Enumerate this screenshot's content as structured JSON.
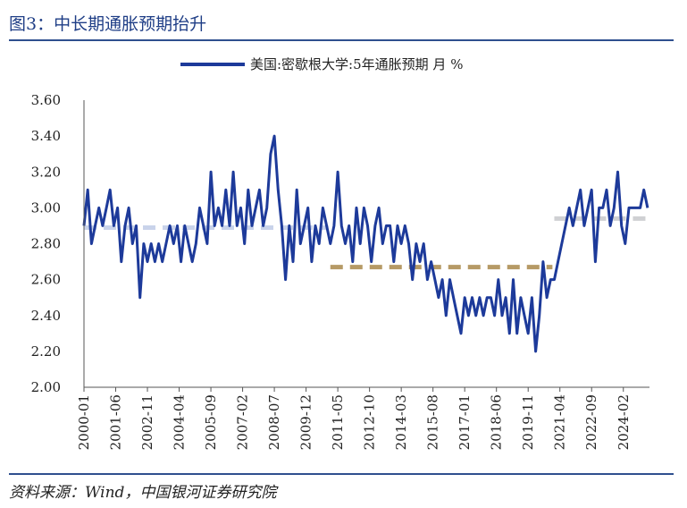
{
  "figure": {
    "title": "图3：中长期通胀预期抬升",
    "source": "资料来源：Wind，中国银河证券研究院"
  },
  "colors": {
    "series": "#1d3a9a",
    "mean1": "#c9d3ea",
    "mean2": "#b69a66",
    "mean3": "#cfd0d3",
    "axis": "#555555",
    "title": "#1f3e86"
  },
  "chart_data": {
    "type": "line",
    "legend": "美国:密歇根大学:5年通胀预期 月 %",
    "legend_position": "top-center",
    "grid": false,
    "ylim": [
      2.0,
      3.6
    ],
    "yticks": [
      "2.00",
      "2.20",
      "2.40",
      "2.60",
      "2.80",
      "3.00",
      "3.20",
      "3.40",
      "3.60"
    ],
    "xlim": [
      "2000-01",
      "2025-04"
    ],
    "xticks": [
      "2000-01",
      "2001-06",
      "2002-11",
      "2004-04",
      "2005-09",
      "2007-02",
      "2008-07",
      "2009-12",
      "2011-05",
      "2012-10",
      "2014-03",
      "2015-08",
      "2017-01",
      "2018-06",
      "2019-11",
      "2021-04",
      "2022-09",
      "2024-02"
    ],
    "series": [
      {
        "x": [
          "2000-01",
          "2000-03",
          "2000-05",
          "2000-07",
          "2000-09",
          "2000-11",
          "2001-01",
          "2001-03",
          "2001-05",
          "2001-07",
          "2001-09",
          "2001-11",
          "2002-01",
          "2002-03",
          "2002-05",
          "2002-07",
          "2002-09",
          "2002-11",
          "2003-01",
          "2003-03",
          "2003-05",
          "2003-07",
          "2003-09",
          "2003-11",
          "2004-01",
          "2004-03",
          "2004-05",
          "2004-07",
          "2004-09",
          "2004-11",
          "2005-01",
          "2005-03",
          "2005-05",
          "2005-07",
          "2005-09",
          "2005-11",
          "2006-01",
          "2006-03",
          "2006-05",
          "2006-07",
          "2006-09",
          "2006-11",
          "2007-01",
          "2007-03",
          "2007-05",
          "2007-07",
          "2007-09",
          "2007-11",
          "2008-01",
          "2008-03",
          "2008-05",
          "2008-07",
          "2008-09",
          "2008-11",
          "2009-01",
          "2009-03",
          "2009-05",
          "2009-07",
          "2009-09",
          "2009-11",
          "2010-01",
          "2010-03",
          "2010-05",
          "2010-07",
          "2010-09",
          "2010-11",
          "2011-01",
          "2011-03",
          "2011-05",
          "2011-07",
          "2011-09",
          "2011-11",
          "2012-01",
          "2012-03",
          "2012-05",
          "2012-07",
          "2012-09",
          "2012-11",
          "2013-01",
          "2013-03",
          "2013-05",
          "2013-07",
          "2013-09",
          "2013-11",
          "2014-01",
          "2014-03",
          "2014-05",
          "2014-07",
          "2014-09",
          "2014-11",
          "2015-01",
          "2015-03",
          "2015-05",
          "2015-07",
          "2015-09",
          "2015-11",
          "2016-01",
          "2016-03",
          "2016-05",
          "2016-07",
          "2016-09",
          "2016-11",
          "2017-01",
          "2017-03",
          "2017-05",
          "2017-07",
          "2017-09",
          "2017-11",
          "2018-01",
          "2018-03",
          "2018-05",
          "2018-07",
          "2018-09",
          "2018-11",
          "2019-01",
          "2019-03",
          "2019-05",
          "2019-07",
          "2019-09",
          "2019-11",
          "2020-01",
          "2020-03",
          "2020-05",
          "2020-07",
          "2020-09",
          "2020-11",
          "2021-01",
          "2021-03",
          "2021-05",
          "2021-07",
          "2021-09",
          "2021-11",
          "2022-01",
          "2022-03",
          "2022-05",
          "2022-07",
          "2022-09",
          "2022-11",
          "2023-01",
          "2023-03",
          "2023-05",
          "2023-07",
          "2023-09",
          "2023-11",
          "2024-01",
          "2024-03",
          "2024-05",
          "2024-07",
          "2024-09",
          "2024-11",
          "2025-01",
          "2025-03"
        ],
        "values": [
          2.9,
          3.1,
          2.8,
          2.9,
          3.0,
          2.9,
          3.0,
          3.1,
          2.9,
          3.0,
          2.7,
          2.9,
          3.0,
          2.8,
          2.9,
          2.5,
          2.8,
          2.7,
          2.8,
          2.7,
          2.8,
          2.7,
          2.8,
          2.9,
          2.8,
          2.9,
          2.7,
          2.9,
          2.8,
          2.7,
          2.8,
          3.0,
          2.9,
          2.8,
          3.2,
          2.9,
          3.0,
          2.9,
          3.1,
          2.9,
          3.2,
          2.9,
          3.0,
          2.8,
          3.1,
          2.9,
          3.0,
          3.1,
          2.9,
          3.0,
          3.3,
          3.4,
          3.1,
          2.9,
          2.6,
          2.9,
          2.7,
          3.1,
          2.8,
          2.9,
          3.0,
          2.7,
          2.9,
          2.8,
          3.0,
          2.9,
          2.8,
          2.9,
          3.2,
          2.9,
          2.8,
          2.9,
          2.7,
          3.0,
          2.8,
          3.0,
          2.9,
          2.7,
          2.9,
          3.0,
          2.8,
          2.9,
          2.9,
          2.7,
          2.9,
          2.8,
          2.9,
          2.8,
          2.6,
          2.8,
          2.7,
          2.8,
          2.6,
          2.7,
          2.6,
          2.5,
          2.6,
          2.4,
          2.6,
          2.5,
          2.4,
          2.3,
          2.5,
          2.4,
          2.5,
          2.4,
          2.5,
          2.4,
          2.5,
          2.5,
          2.4,
          2.6,
          2.4,
          2.5,
          2.3,
          2.6,
          2.3,
          2.5,
          2.4,
          2.3,
          2.5,
          2.2,
          2.4,
          2.7,
          2.5,
          2.6,
          2.6,
          2.7,
          2.8,
          2.9,
          3.0,
          2.9,
          3.0,
          3.1,
          2.9,
          3.0,
          3.1,
          2.7,
          3.0,
          3.0,
          3.1,
          2.9,
          3.0,
          3.2,
          2.9,
          2.8,
          3.0,
          3.0,
          3.0,
          3.0,
          3.1,
          3.0
        ]
      }
    ],
    "reference_lines": [
      {
        "from": "2000-01",
        "to": "2010-12",
        "value": 2.89
      },
      {
        "from": "2011-01",
        "to": "2020-12",
        "value": 2.67
      },
      {
        "from": "2021-01",
        "to": "2025-03",
        "value": 2.94
      }
    ]
  }
}
